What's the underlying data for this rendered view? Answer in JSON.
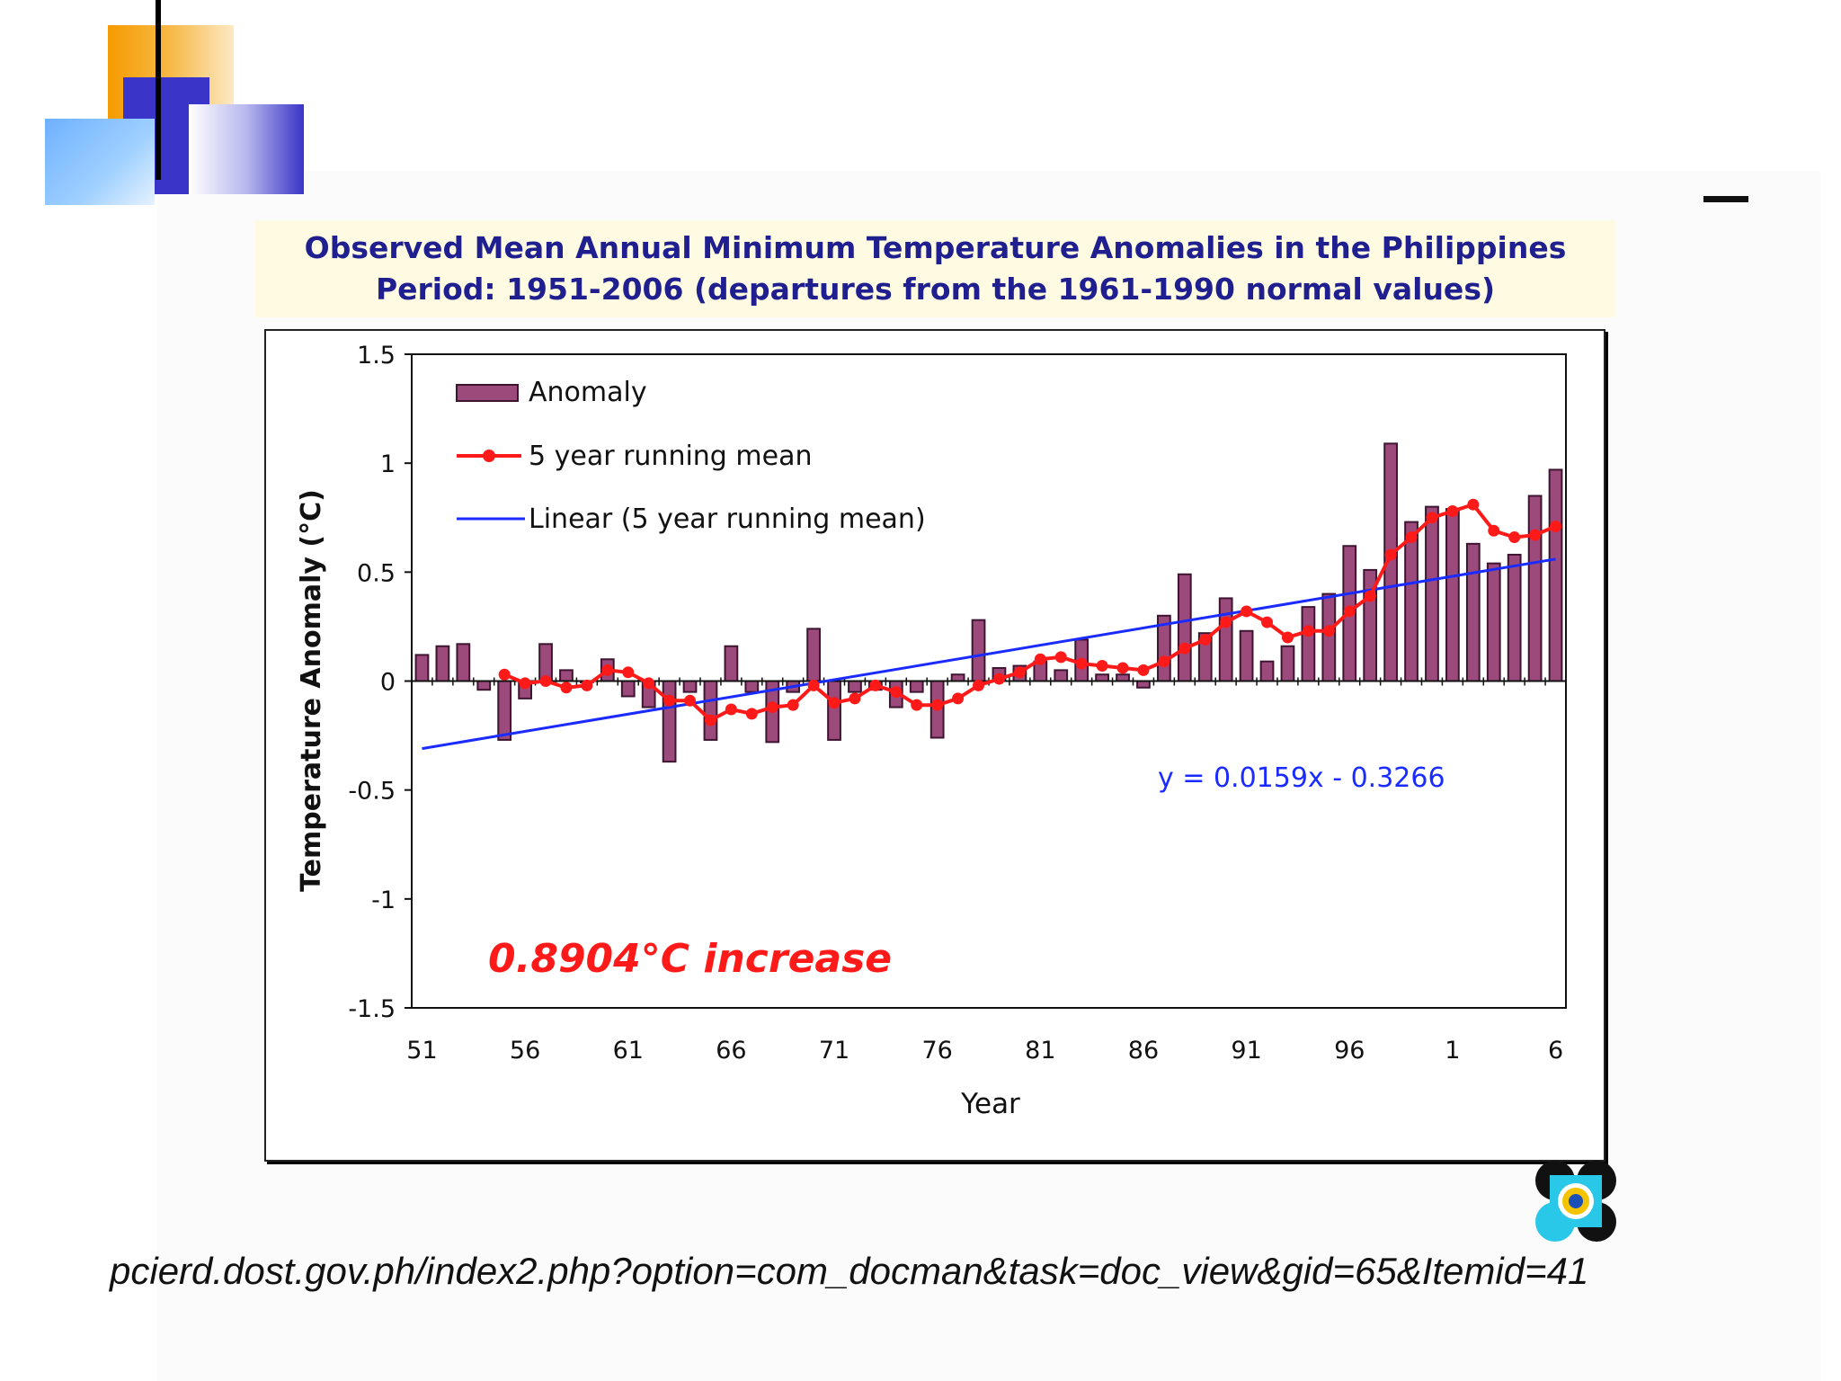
{
  "title": {
    "line1": "Observed Mean Annual Minimum Temperature Anomalies in the Philippines",
    "line2": "Period: 1951-2006 (departures from the 1961-1990 normal values)"
  },
  "source_text": "pcierd.dost.gov.ph/index2.php?option=com_docman&task=doc_view&gid=65&Itemid=41",
  "colors": {
    "bar_fill": "#9c4a7c",
    "bar_stroke": "#3d1530",
    "running_mean": "#ff1a1a",
    "linear": "#1a2bff",
    "title_text": "#1f1f8f",
    "title_bg": "#fffbe3",
    "equation": "#1a2bff",
    "increase": "#ff1a1a"
  },
  "decor": {
    "top_left": "overlapping orange, blue and gradient squares with a vertical black line",
    "logo": "DOST agency emblem",
    "dash": "short black horizontal rule"
  },
  "chart_data": {
    "type": "bar",
    "xlabel": "Year",
    "ylabel": "Temperature Anomaly (°C)",
    "ylim": [
      -1.5,
      1.5
    ],
    "yticks": [
      "1.5",
      "1",
      "0.5",
      "0",
      "-0.5",
      "-1",
      "-1.5"
    ],
    "ytick_values": [
      1.5,
      1,
      0.5,
      0,
      -0.5,
      -1,
      -1.5
    ],
    "xtick_labels": [
      "51",
      "56",
      "61",
      "66",
      "71",
      "76",
      "81",
      "86",
      "91",
      "96",
      "1",
      "6"
    ],
    "xtick_years": [
      1951,
      1956,
      1961,
      1966,
      1971,
      1976,
      1981,
      1986,
      1991,
      1996,
      2001,
      2006
    ],
    "years": [
      1951,
      1952,
      1953,
      1954,
      1955,
      1956,
      1957,
      1958,
      1959,
      1960,
      1961,
      1962,
      1963,
      1964,
      1965,
      1966,
      1967,
      1968,
      1969,
      1970,
      1971,
      1972,
      1973,
      1974,
      1975,
      1976,
      1977,
      1978,
      1979,
      1980,
      1981,
      1982,
      1983,
      1984,
      1985,
      1986,
      1987,
      1988,
      1989,
      1990,
      1991,
      1992,
      1993,
      1994,
      1995,
      1996,
      1997,
      1998,
      1999,
      2000,
      2001,
      2002,
      2003,
      2004,
      2005,
      2006
    ],
    "grid": false,
    "legend_position": "top-left",
    "series": [
      {
        "name": "Anomaly",
        "type": "bar",
        "values": [
          0.12,
          0.16,
          0.17,
          -0.04,
          -0.27,
          -0.08,
          0.17,
          0.05,
          0.0,
          0.1,
          -0.07,
          -0.12,
          -0.37,
          -0.05,
          -0.27,
          0.16,
          -0.05,
          -0.28,
          -0.05,
          0.24,
          -0.27,
          -0.05,
          -0.04,
          -0.12,
          -0.05,
          -0.26,
          0.03,
          0.28,
          0.06,
          0.07,
          0.09,
          0.05,
          0.19,
          0.03,
          0.03,
          -0.03,
          0.3,
          0.49,
          0.22,
          0.38,
          0.23,
          0.09,
          0.16,
          0.34,
          0.4,
          0.62,
          0.51,
          1.09,
          0.73,
          0.8,
          0.79,
          0.63,
          0.54,
          0.58,
          0.85,
          0.97
        ]
      },
      {
        "name": "5 year running mean",
        "type": "line",
        "start_year": 1955,
        "values": [
          0.03,
          -0.01,
          0.0,
          -0.03,
          -0.02,
          0.05,
          0.04,
          -0.01,
          -0.09,
          -0.09,
          -0.18,
          -0.13,
          -0.15,
          -0.12,
          -0.11,
          -0.02,
          -0.1,
          -0.08,
          -0.02,
          -0.05,
          -0.11,
          -0.11,
          -0.08,
          -0.02,
          0.01,
          0.04,
          0.1,
          0.11,
          0.08,
          0.07,
          0.06,
          0.05,
          0.09,
          0.15,
          0.19,
          0.27,
          0.32,
          0.27,
          0.2,
          0.23,
          0.23,
          0.32,
          0.39,
          0.58,
          0.66,
          0.75,
          0.78,
          0.81,
          0.69,
          0.66,
          0.67,
          0.71
        ]
      },
      {
        "name": "Linear (5 year running mean)",
        "type": "line",
        "x": [
          1951,
          2006
        ],
        "values": [
          -0.31,
          0.56
        ]
      }
    ],
    "annotations": [
      {
        "text": "y = 0.0159x - 0.3266"
      },
      {
        "text": "0.8904°C increase"
      }
    ]
  }
}
